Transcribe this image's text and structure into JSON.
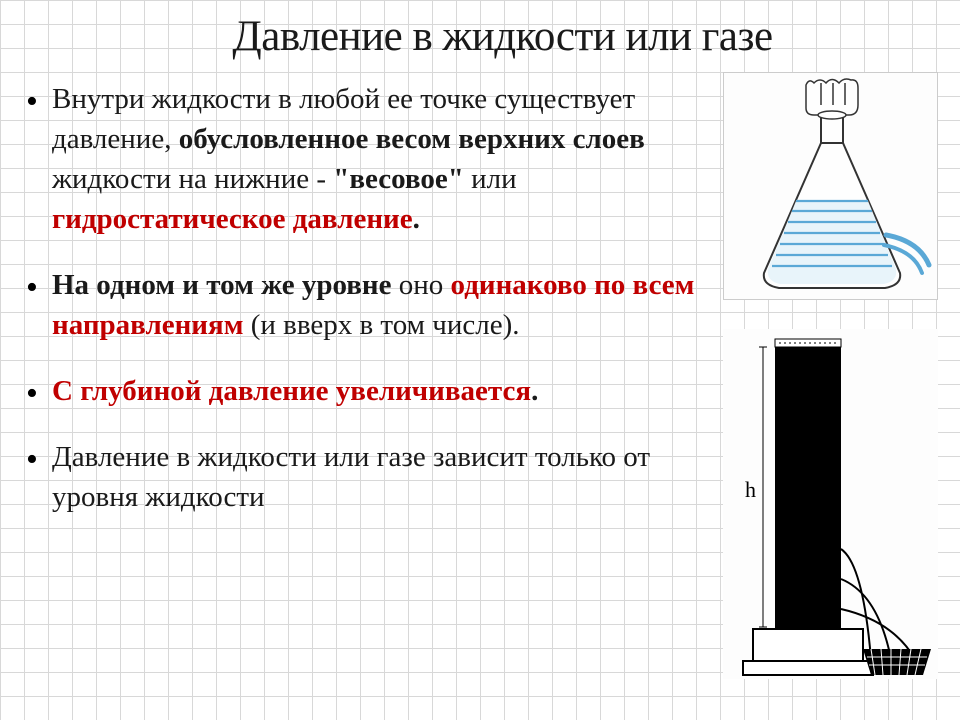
{
  "title": "Давление в жидкости или газе",
  "bullets": [
    {
      "segments": [
        {
          "text": "Внутри жидкости в любой ее точке существует давление, ",
          "style": "normal"
        },
        {
          "text": "обусловленное весом верхних слоев",
          "style": "bold"
        },
        {
          "text": " жидкости на нижние - ",
          "style": "normal"
        },
        {
          "text": "\"весовое\"",
          "style": "bold"
        },
        {
          "text": " или ",
          "style": "normal"
        },
        {
          "text": "гидростатическое давление",
          "style": "red-bold"
        },
        {
          "text": ".",
          "style": "bold"
        }
      ]
    },
    {
      "segments": [
        {
          "text": "На одном и том же уровне",
          "style": "bold"
        },
        {
          "text": " оно ",
          "style": "normal"
        },
        {
          "text": "одинаково по всем направлениям",
          "style": "red-bold"
        },
        {
          "text": " (и вверх в том числе).",
          "style": "normal"
        }
      ]
    },
    {
      "segments": [
        {
          "text": "С глубиной давление увеличивается",
          "style": "red-bold"
        },
        {
          "text": ".",
          "style": "bold"
        }
      ]
    },
    {
      "segments": [
        {
          "text": "Давление в жидкости или газе зависит только от уровня жидкости",
          "style": "normal"
        }
      ]
    }
  ],
  "flask": {
    "body_stroke": "#333",
    "water_fill": "#e8f4fa",
    "water_lines": "#5aa8d6",
    "hand_stroke": "#333"
  },
  "column": {
    "h_label": "h",
    "fill": "#000000",
    "base_stroke": "#000000",
    "stream_stroke": "#000000",
    "basket_fill": "#000000"
  },
  "colors": {
    "text": "#1a1a1a",
    "red": "#c00000",
    "grid": "#d8d8d8",
    "bg": "#ffffff"
  }
}
